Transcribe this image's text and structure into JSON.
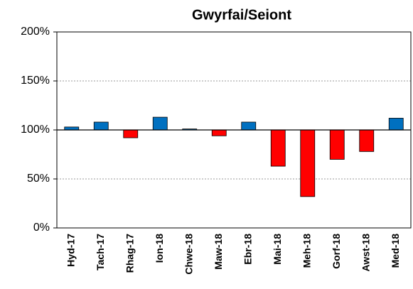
{
  "chart_data": {
    "type": "bar",
    "title": "Gwyrfai/Seiont",
    "categories": [
      "Hyd-17",
      "Tach-17",
      "Rhag-17",
      "Ion-18",
      "Chwe-18",
      "Maw-18",
      "Ebr-18",
      "Mai-18",
      "Meh-18",
      "Gorf-18",
      "Awst-18",
      "Med-18"
    ],
    "values": [
      103,
      108,
      92,
      113,
      101,
      94,
      108,
      63,
      32,
      70,
      78,
      112
    ],
    "baseline": 100,
    "color_above": "#0070c0",
    "color_below": "#ff0000",
    "ylim": [
      0,
      200
    ],
    "yticks": [
      {
        "value": 0,
        "label": "0%"
      },
      {
        "value": 50,
        "label": "50%"
      },
      {
        "value": 100,
        "label": "100%"
      },
      {
        "value": 150,
        "label": "150%"
      },
      {
        "value": 200,
        "label": "200%"
      }
    ],
    "grid": true
  }
}
